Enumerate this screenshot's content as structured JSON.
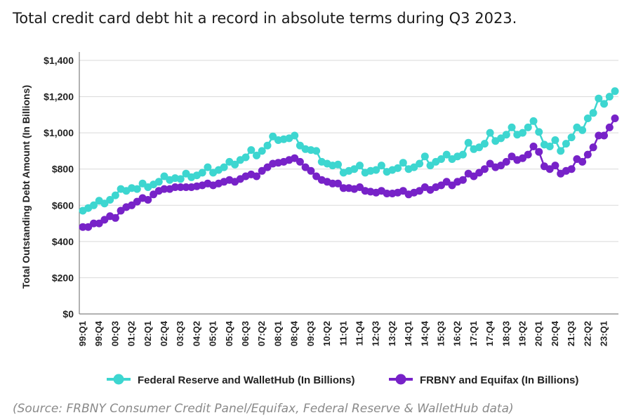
{
  "headline": "Total credit card debt hit a record in absolute terms during Q3 2023.",
  "source": "(Source: FRBNY Consumer Credit Panel/Equifax, Federal Reserve & WalletHub data)",
  "chart_data": {
    "type": "line",
    "title": "",
    "ylabel": "Total Outstanding Debt Amount (In Billions)",
    "xlabel": "",
    "ylim": [
      0,
      1400
    ],
    "yticks": [
      0,
      200,
      400,
      600,
      800,
      1000,
      1200,
      1400
    ],
    "ytick_labels": [
      "$0",
      "$200",
      "$400",
      "$600",
      "$800",
      "$1,000",
      "$1,200",
      "$1,400"
    ],
    "grid": "horizontal",
    "legend_position": "bottom",
    "colors": {
      "walletHub": "#3dd6d0",
      "equifax": "#7722c8",
      "axis": "#666666",
      "grid": "#d9d9d9"
    },
    "x": [
      "99:Q1",
      "99:Q2",
      "99:Q3",
      "99:Q4",
      "00:Q1",
      "00:Q2",
      "00:Q3",
      "00:Q4",
      "01:Q1",
      "01:Q2",
      "01:Q3",
      "01:Q4",
      "02:Q1",
      "02:Q2",
      "02:Q3",
      "02:Q4",
      "03:Q1",
      "03:Q2",
      "03:Q3",
      "03:Q4",
      "04:Q1",
      "04:Q2",
      "04:Q3",
      "04:Q4",
      "05:Q1",
      "05:Q2",
      "05:Q3",
      "05:Q4",
      "06:Q1",
      "06:Q2",
      "06:Q3",
      "06:Q4",
      "07:Q1",
      "07:Q2",
      "07:Q3",
      "07:Q4",
      "08:Q1",
      "08:Q2",
      "08:Q3",
      "08:Q4",
      "09:Q1",
      "09:Q2",
      "09:Q3",
      "09:Q4",
      "10:Q1",
      "10:Q2",
      "10:Q3",
      "10:Q4",
      "11:Q1",
      "11:Q2",
      "11:Q3",
      "11:Q4",
      "12:Q1",
      "12:Q2",
      "12:Q3",
      "12:Q4",
      "13:Q1",
      "13:Q2",
      "13:Q3",
      "13:Q4",
      "14:Q1",
      "14:Q2",
      "14:Q3",
      "14:Q4",
      "15:Q1",
      "15:Q2",
      "15:Q3",
      "15:Q4",
      "16:Q1",
      "16:Q2",
      "16:Q3",
      "16:Q4",
      "17:Q1",
      "17:Q2",
      "17:Q3",
      "17:Q4",
      "18:Q1",
      "18:Q2",
      "18:Q3",
      "18:Q4",
      "19:Q1",
      "19:Q2",
      "19:Q3",
      "19:Q4",
      "20:Q1",
      "20:Q2",
      "20:Q3",
      "20:Q4",
      "21:Q1",
      "21:Q2",
      "21:Q3",
      "21:Q4",
      "22:Q1",
      "22:Q2",
      "22:Q3",
      "22:Q4",
      "23:Q1",
      "23:Q2",
      "23:Q3"
    ],
    "x_tick_labels": [
      "99:Q1",
      "99:Q4",
      "00:Q3",
      "01:Q2",
      "02:Q1",
      "02:Q4",
      "03:Q3",
      "04:Q2",
      "05:Q1",
      "05:Q4",
      "06:Q3",
      "07:Q2",
      "08:Q1",
      "08:Q4",
      "09:Q3",
      "10:Q2",
      "11:Q1",
      "11:Q4",
      "12:Q3",
      "13:Q2",
      "14:Q1",
      "14:Q4",
      "15:Q3",
      "16:Q2",
      "17:Q1",
      "17:Q4",
      "18:Q3",
      "19:Q2",
      "20:Q1",
      "20:Q4",
      "21:Q3",
      "22:Q2",
      "23:Q1"
    ],
    "series": [
      {
        "name": "Federal Reserve and WalletHub (In Billions)",
        "color": "#3dd6d0",
        "values": [
          570,
          585,
          600,
          625,
          610,
          630,
          655,
          690,
          680,
          695,
          690,
          720,
          700,
          715,
          730,
          760,
          740,
          750,
          745,
          775,
          755,
          765,
          780,
          810,
          780,
          795,
          810,
          840,
          825,
          850,
          865,
          905,
          875,
          900,
          930,
          980,
          960,
          965,
          970,
          985,
          930,
          910,
          905,
          900,
          840,
          830,
          820,
          825,
          780,
          790,
          800,
          820,
          780,
          790,
          795,
          820,
          785,
          795,
          805,
          835,
          800,
          810,
          830,
          870,
          820,
          840,
          855,
          880,
          855,
          870,
          880,
          945,
          910,
          920,
          940,
          1000,
          955,
          970,
          990,
          1030,
          990,
          1000,
          1030,
          1065,
          1005,
          935,
          925,
          960,
          900,
          940,
          975,
          1030,
          1015,
          1080,
          1110,
          1190,
          1160,
          1200,
          1230
        ]
      },
      {
        "name": "FRBNY and Equifax (In Billions)",
        "color": "#7722c8",
        "values": [
          480,
          480,
          500,
          500,
          520,
          540,
          530,
          570,
          590,
          600,
          620,
          640,
          630,
          660,
          680,
          690,
          690,
          700,
          700,
          700,
          700,
          705,
          710,
          720,
          710,
          720,
          730,
          740,
          730,
          745,
          760,
          770,
          760,
          790,
          810,
          830,
          835,
          840,
          850,
          860,
          840,
          810,
          790,
          760,
          740,
          730,
          720,
          720,
          695,
          695,
          690,
          700,
          680,
          675,
          670,
          680,
          665,
          665,
          670,
          680,
          660,
          670,
          680,
          700,
          685,
          700,
          710,
          730,
          710,
          730,
          740,
          775,
          760,
          780,
          800,
          830,
          810,
          820,
          840,
          870,
          850,
          860,
          880,
          925,
          895,
          815,
          800,
          820,
          775,
          790,
          800,
          855,
          840,
          880,
          920,
          985,
          985,
          1030,
          1080
        ]
      }
    ]
  }
}
